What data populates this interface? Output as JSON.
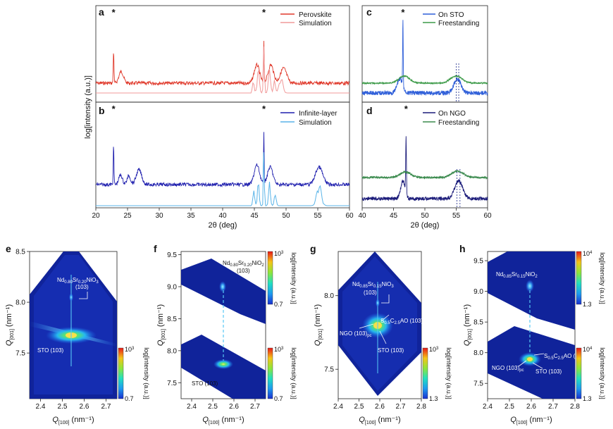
{
  "chart_data": [
    {
      "id": "a",
      "type": "line",
      "letter": "a",
      "ylabel": "log[intensity (a.u.)]",
      "xlim": [
        20,
        60
      ],
      "series": [
        {
          "name": "Perovskite",
          "color": "#e0392b",
          "peaks": [
            [
              22.8,
              1.0,
              0.08
            ],
            [
              24.0,
              0.35,
              0.5
            ],
            [
              46.5,
              1.25,
              0.07
            ],
            [
              45.4,
              0.55,
              0.6
            ],
            [
              47.6,
              0.55,
              0.6
            ],
            [
              49.6,
              0.45,
              0.7
            ]
          ]
        },
        {
          "name": "Simulation",
          "color": "#f19a9a",
          "peaks": [
            [
              46.5,
              1.2,
              0.12
            ],
            [
              45.6,
              0.6,
              0.25
            ],
            [
              44.8,
              0.3,
              0.2
            ],
            [
              47.4,
              0.6,
              0.25
            ],
            [
              48.2,
              0.35,
              0.2
            ],
            [
              49.2,
              0.4,
              0.4
            ]
          ]
        }
      ],
      "stars": [
        22.8,
        46.5
      ]
    },
    {
      "id": "b",
      "type": "line",
      "letter": "b",
      "xlabel": "2θ (deg)",
      "xlim": [
        20,
        60
      ],
      "xticks": [
        20,
        25,
        30,
        35,
        40,
        45,
        50,
        55,
        60
      ],
      "series": [
        {
          "name": "Infinite-layer",
          "color": "#1f1fae",
          "peaks": [
            [
              22.8,
              1.0,
              0.08
            ],
            [
              23.9,
              0.25,
              0.4
            ],
            [
              25.2,
              0.22,
              0.4
            ],
            [
              26.8,
              0.38,
              0.6
            ],
            [
              46.5,
              1.3,
              0.07
            ],
            [
              45.4,
              0.5,
              0.6
            ],
            [
              47.5,
              0.45,
              0.6
            ],
            [
              55.2,
              0.45,
              0.8
            ]
          ]
        },
        {
          "name": "Simulation",
          "color": "#5ab4e8",
          "peaks": [
            [
              46.5,
              1.2,
              0.1
            ],
            [
              45.6,
              0.5,
              0.2
            ],
            [
              44.9,
              0.3,
              0.2
            ],
            [
              47.4,
              0.5,
              0.2
            ],
            [
              48.3,
              0.3,
              0.2
            ],
            [
              55.2,
              0.45,
              0.5
            ]
          ]
        }
      ],
      "stars": [
        22.8,
        46.5
      ]
    },
    {
      "id": "c",
      "type": "line",
      "letter": "c",
      "xlim": [
        40,
        60
      ],
      "series": [
        {
          "name": "On STO",
          "color": "#2f5fd9",
          "peaks": [
            [
              46.5,
              1.4,
              0.07
            ],
            [
              46.0,
              0.3,
              0.6
            ],
            [
              55.2,
              0.3,
              0.8
            ]
          ]
        },
        {
          "name": "Freestanding",
          "color": "#3c9a48",
          "peaks": [
            [
              46.7,
              0.28,
              1.2
            ],
            [
              55.0,
              0.28,
              1.3
            ]
          ]
        }
      ],
      "stars": [
        46.5
      ],
      "dashed_x": [
        55.0,
        55.4
      ]
    },
    {
      "id": "d",
      "type": "line",
      "letter": "d",
      "xlabel": "2θ (deg)",
      "xlim": [
        40,
        60
      ],
      "xticks": [
        40,
        45,
        50,
        55,
        60
      ],
      "series": [
        {
          "name": "On NGO",
          "color": "#1c1c7a",
          "peaks": [
            [
              47.0,
              1.1,
              0.08
            ],
            [
              46.5,
              0.35,
              0.5
            ],
            [
              55.4,
              0.35,
              0.9
            ]
          ]
        },
        {
          "name": "Freestanding",
          "color": "#3a8a4d",
          "peaks": [
            [
              46.9,
              0.22,
              1.2
            ],
            [
              55.2,
              0.25,
              1.3
            ]
          ]
        }
      ],
      "stars": [
        47.0
      ],
      "dashed_x": [
        55.1,
        55.6
      ]
    },
    {
      "id": "e",
      "type": "heatmap",
      "letter": "e",
      "xlabel_main": "Q",
      "xlabel_sub": "[100]",
      "xlabel_unit": " (nm⁻¹)",
      "ylabel_main": "Q",
      "ylabel_sub": "[001]",
      "ylabel_unit": " (nm⁻¹)",
      "xlim": [
        2.35,
        2.75
      ],
      "ylim": [
        7.05,
        8.5
      ],
      "xticks": [
        "2.4",
        "2.5",
        "2.6",
        "2.7"
      ],
      "yticks": [
        "7.5",
        "8.0",
        "8.5"
      ],
      "colorbar": {
        "max_base": "10",
        "max_exp": "3",
        "min": "0.7",
        "label": "log[intensity (a.u.)]"
      },
      "annotations": [
        "Nd0.80Sr0.20NiO3 (103)",
        "STO (103)"
      ],
      "label_nd": {
        "main": "Nd",
        "s1": "0.80",
        "mid": "Sr",
        "s2": "0.20",
        "end": "NiO",
        "s3": "3",
        "line2": "(103)"
      },
      "label_sub": "STO (103)"
    },
    {
      "id": "f",
      "type": "heatmap",
      "letter": "f",
      "xlabel_main": "Q",
      "xlabel_sub": "[100]",
      "xlabel_unit": " (nm⁻¹)",
      "ylabel_main": "Q",
      "ylabel_sub": "[001]",
      "ylabel_unit": " (nm⁻¹)",
      "xlim": [
        2.35,
        2.75
      ],
      "ylim": [
        7.25,
        9.55
      ],
      "xticks": [
        "2.4",
        "2.5",
        "2.6",
        "2.7"
      ],
      "yticks": [
        "7.5",
        "8.0",
        "8.5",
        "9.0",
        "9.5"
      ],
      "colorbar_top": {
        "max_base": "10",
        "max_exp": "3",
        "min": "0.7",
        "label": "log[intensity (a.u.)]"
      },
      "colorbar_bot": {
        "max_base": "10",
        "max_exp": "3",
        "min": "0.7",
        "label": "log[intensity (a.u.)]"
      },
      "annotations": [
        "Nd0.80Sr0.20NiO2 (103)",
        "STO (103)"
      ],
      "label_nd": {
        "main": "Nd",
        "s1": "0.80",
        "mid": "Sr",
        "s2": "0.20",
        "end": "NiO",
        "s3": "2",
        "line2": "(103)"
      },
      "label_sub": "STO (103)"
    },
    {
      "id": "g",
      "type": "heatmap",
      "letter": "g",
      "xlabel_main": "Q",
      "xlabel_sub": "[100]",
      "xlabel_unit": " (nm⁻¹)",
      "ylabel_main": "Q",
      "ylabel_sub": "[001]",
      "ylabel_unit": " (nm⁻¹)",
      "xlim": [
        2.4,
        2.8
      ],
      "ylim": [
        7.3,
        8.3
      ],
      "xticks": [
        "2.4",
        "2.5",
        "2.6",
        "2.7",
        "2.8"
      ],
      "yticks": [
        "7.5",
        "8.0"
      ],
      "colorbar": {
        "max_base": "10",
        "max_exp": "3",
        "min": "1.3",
        "label": "log[intensity (a.u.)]"
      },
      "annotations": [
        "Nd0.85Sr0.15NiO3 (103)",
        "S0.5C2.5AO (103)",
        "NGO (103)pc",
        "STO (103)"
      ],
      "label_nd": {
        "main": "Nd",
        "s1": "0.85",
        "mid": "Sr",
        "s2": "0.15",
        "end": "NiO",
        "s3": "3",
        "line2": "(103)"
      },
      "label_sac": {
        "main": "S",
        "s1": "0.5",
        "mid": "C",
        "s2": "2.5",
        "end": "AO (103)"
      },
      "label_ngo": {
        "main": "NGO (103)",
        "sub": "pc"
      },
      "label_sub": "STO (103)"
    },
    {
      "id": "h",
      "type": "heatmap",
      "letter": "h",
      "xlabel_main": "Q",
      "xlabel_sub": "[100]",
      "xlabel_unit": " (nm⁻¹)",
      "ylabel_main": "Q",
      "ylabel_sub": "[001]",
      "ylabel_unit": " (nm⁻¹)",
      "xlim": [
        2.4,
        2.8
      ],
      "ylim": [
        7.25,
        9.65
      ],
      "xticks": [
        "2.4",
        "2.5",
        "2.6",
        "2.7",
        "2.8"
      ],
      "yticks": [
        "7.5",
        "8.0",
        "8.5",
        "9.0",
        "9.5"
      ],
      "colorbar_top": {
        "max_base": "10",
        "max_exp": "4",
        "min": "1.3",
        "label": "log[intensity (a.u.)]"
      },
      "colorbar_bot": {
        "max_base": "10",
        "max_exp": "4",
        "min": "1.3",
        "label": "log[intensity (a.u.)]"
      },
      "annotations": [
        "Nd0.85Sr0.15NiO2",
        "S0.5C2.5AO (103)",
        "NGO (103)pc",
        "STO (103)"
      ],
      "label_nd": {
        "main": "Nd",
        "s1": "0.85",
        "mid": "Sr",
        "s2": "0.15",
        "end": "NiO",
        "s3": "2",
        "line2": ""
      },
      "label_sac": {
        "main": "S",
        "s1": "0.5",
        "mid": "C",
        "s2": "2.5",
        "end": "AO (103)"
      },
      "label_ngo": {
        "main": "NGO (103)",
        "sub": "pc"
      },
      "label_sub": "STO (103)"
    }
  ],
  "colors": {
    "map_bg": "#10239a",
    "map_mid": "#1f5fe8"
  }
}
